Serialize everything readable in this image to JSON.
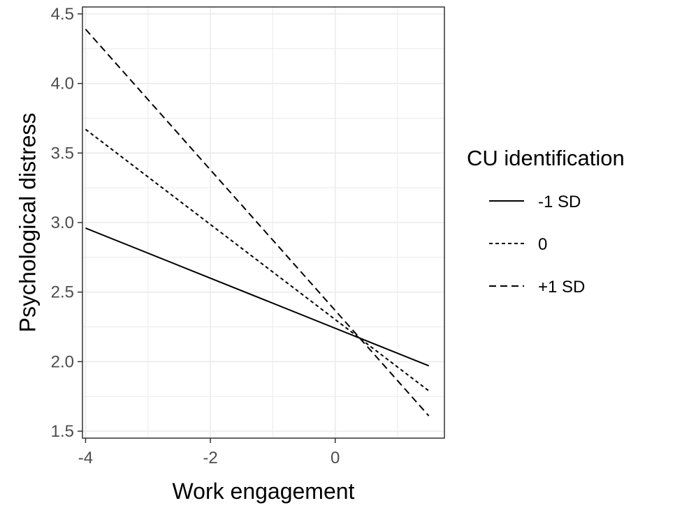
{
  "chart_data": {
    "type": "line",
    "xlabel": "Work engagement",
    "ylabel": "Psychological distress",
    "xlim": [
      -4.05,
      1.75
    ],
    "ylim": [
      1.45,
      4.55
    ],
    "x_ticks": [
      -4,
      -2,
      0
    ],
    "x_tick_labels": [
      "-4",
      "-2",
      "0"
    ],
    "y_ticks": [
      1.5,
      2.0,
      2.5,
      3.0,
      3.5,
      4.0,
      4.5
    ],
    "y_tick_labels": [
      "1.5",
      "2.0",
      "2.5",
      "3.0",
      "3.5",
      "4.0",
      "4.5"
    ],
    "grid": true,
    "legend": {
      "title": "CU identification",
      "position": "right"
    },
    "series": [
      {
        "name": "-1 SD",
        "style": "solid",
        "x": [
          -4,
          1.5
        ],
        "y": [
          2.96,
          1.97
        ]
      },
      {
        "name": "0",
        "style": "dotted",
        "x": [
          -4,
          1.5
        ],
        "y": [
          3.67,
          1.79
        ]
      },
      {
        "name": "+1 SD",
        "style": "dashed",
        "x": [
          -4,
          1.5
        ],
        "y": [
          4.39,
          1.61
        ]
      }
    ]
  },
  "colors": {
    "line": "#000000",
    "grid": "#ebebeb",
    "panel_border": "#333333",
    "tick_text": "#4d4d4d"
  }
}
